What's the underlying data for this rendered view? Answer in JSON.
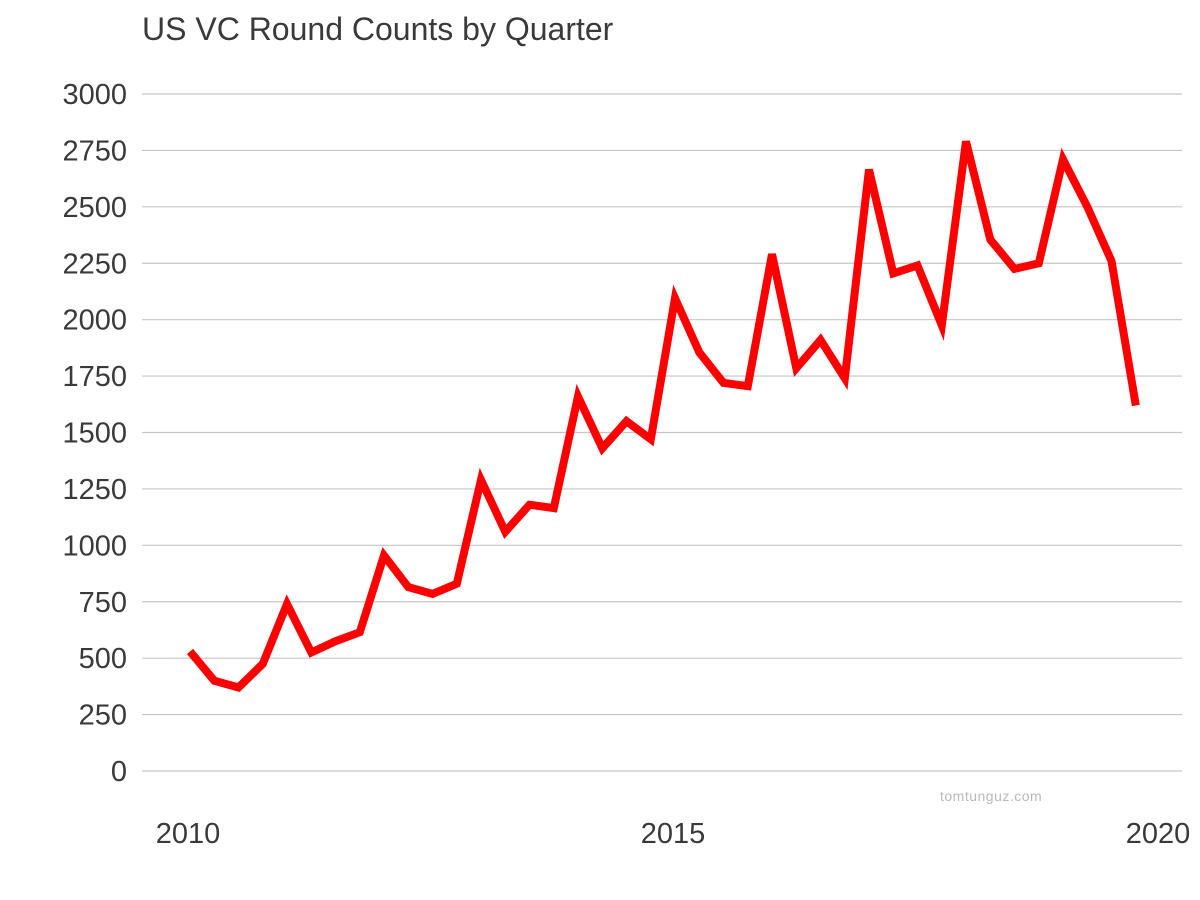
{
  "watermark": "tomtunguz.com",
  "chart_data": {
    "type": "line",
    "title": "US VC Round Counts by Quarter",
    "xlabel": "",
    "ylabel": "",
    "ylim": [
      0,
      3000
    ],
    "xlim": [
      2010,
      2020
    ],
    "yticks": [
      "0",
      "250",
      "500",
      "750",
      "1000",
      "1250",
      "1500",
      "1750",
      "2000",
      "2250",
      "2500",
      "2750",
      "3000"
    ],
    "xticks": [
      "2010",
      "2015",
      "2020"
    ],
    "grid": true,
    "legend": "none",
    "series": [
      {
        "color": "#ff0000",
        "x": [
          2010.0,
          2010.25,
          2010.5,
          2010.75,
          2011.0,
          2011.25,
          2011.5,
          2011.75,
          2012.0,
          2012.25,
          2012.5,
          2012.75,
          2013.0,
          2013.25,
          2013.5,
          2013.75,
          2014.0,
          2014.25,
          2014.5,
          2014.75,
          2015.0,
          2015.25,
          2015.5,
          2015.75,
          2016.0,
          2016.25,
          2016.5,
          2016.75,
          2017.0,
          2017.25,
          2017.5,
          2017.75,
          2018.0,
          2018.25,
          2018.5,
          2018.75,
          2019.0,
          2019.25,
          2019.5,
          2019.75
        ],
        "values": [
          530,
          400,
          370,
          475,
          740,
          525,
          575,
          615,
          955,
          815,
          785,
          830,
          1290,
          1060,
          1180,
          1165,
          1660,
          1430,
          1550,
          1470,
          2095,
          1855,
          1720,
          1705,
          2290,
          1785,
          1910,
          1740,
          2665,
          2205,
          2240,
          1975,
          2790,
          2355,
          2225,
          2250,
          2710,
          2500,
          2260,
          1620
        ]
      }
    ]
  }
}
